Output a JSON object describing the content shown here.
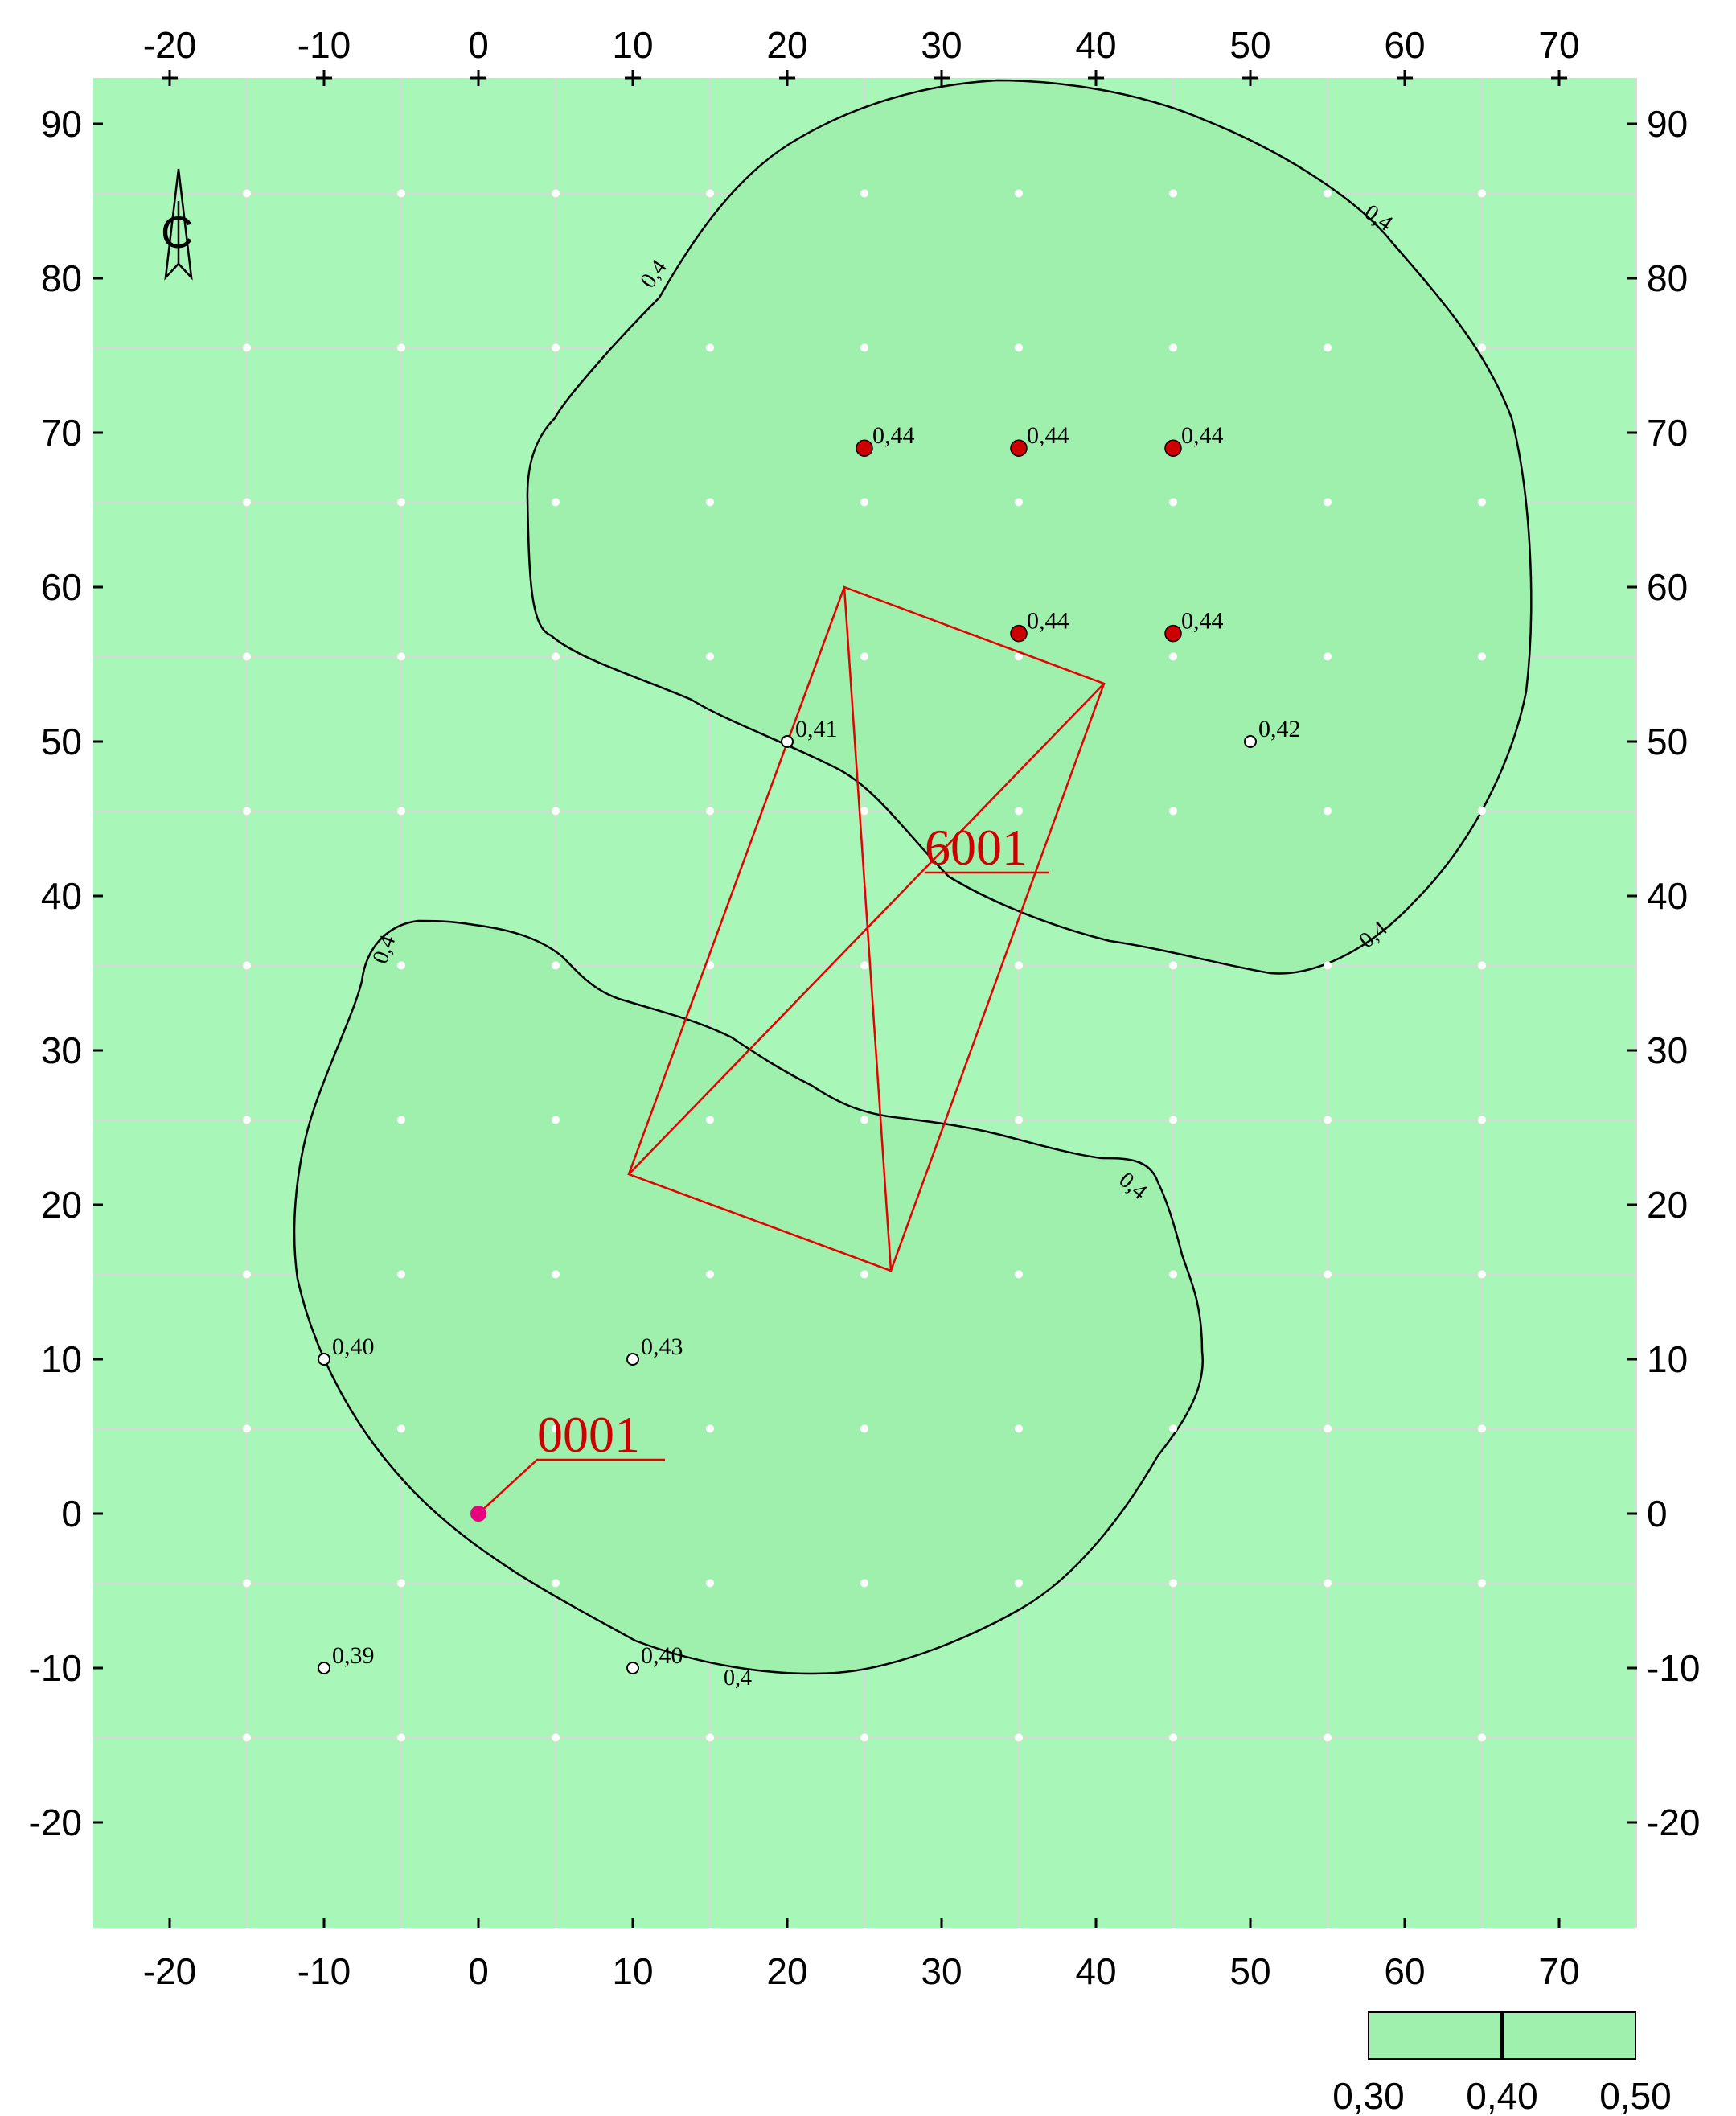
{
  "colors": {
    "background": "#a8f7b8",
    "zone": "#9ef0ac",
    "grid": "#d8d8d8",
    "contour": "#000000",
    "source": "#e60000",
    "point_max": "#cc0000",
    "point_src": "#e6007e"
  },
  "axes": {
    "x_ticks": [
      "-20",
      "-10",
      "0",
      "10",
      "20",
      "30",
      "40",
      "50",
      "60",
      "70"
    ],
    "y_ticks": [
      "90",
      "80",
      "70",
      "60",
      "50",
      "40",
      "30",
      "20",
      "10",
      "0",
      "-10",
      "-20"
    ],
    "x_range": [
      -25,
      75
    ],
    "y_range": [
      -27,
      93
    ],
    "grid_step": 10,
    "grid": true
  },
  "north_arrow": {
    "label": "С",
    "icon": "north-arrow-icon"
  },
  "contour": {
    "level_label": "0,4"
  },
  "sources": [
    {
      "id": "6001",
      "label": "6001",
      "shape": "polygon"
    },
    {
      "id": "0001",
      "label": "0001",
      "x": 0,
      "y": 0
    }
  ],
  "points": [
    {
      "x": 25,
      "y": 69,
      "label": "0,44",
      "type": "max"
    },
    {
      "x": 35,
      "y": 69,
      "label": "0,44",
      "type": "max"
    },
    {
      "x": 45,
      "y": 69,
      "label": "0,44",
      "type": "max"
    },
    {
      "x": 35,
      "y": 57,
      "label": "0,44",
      "type": "max"
    },
    {
      "x": 45,
      "y": 57,
      "label": "0,44",
      "type": "max"
    },
    {
      "x": 20,
      "y": 50,
      "label": "0,41",
      "type": "calc"
    },
    {
      "x": 50,
      "y": 50,
      "label": "0,42",
      "type": "calc"
    },
    {
      "x": -10,
      "y": 10,
      "label": "0,40",
      "type": "calc"
    },
    {
      "x": 10,
      "y": 10,
      "label": "0,43",
      "type": "calc"
    },
    {
      "x": -10,
      "y": -10,
      "label": "0,39",
      "type": "calc"
    },
    {
      "x": 10,
      "y": -10,
      "label": "0,40",
      "type": "calc"
    }
  ],
  "legend": {
    "values": [
      "0,30",
      "0,40",
      "0,50"
    ],
    "marker": 0.4,
    "range": [
      0.3,
      0.5
    ]
  }
}
